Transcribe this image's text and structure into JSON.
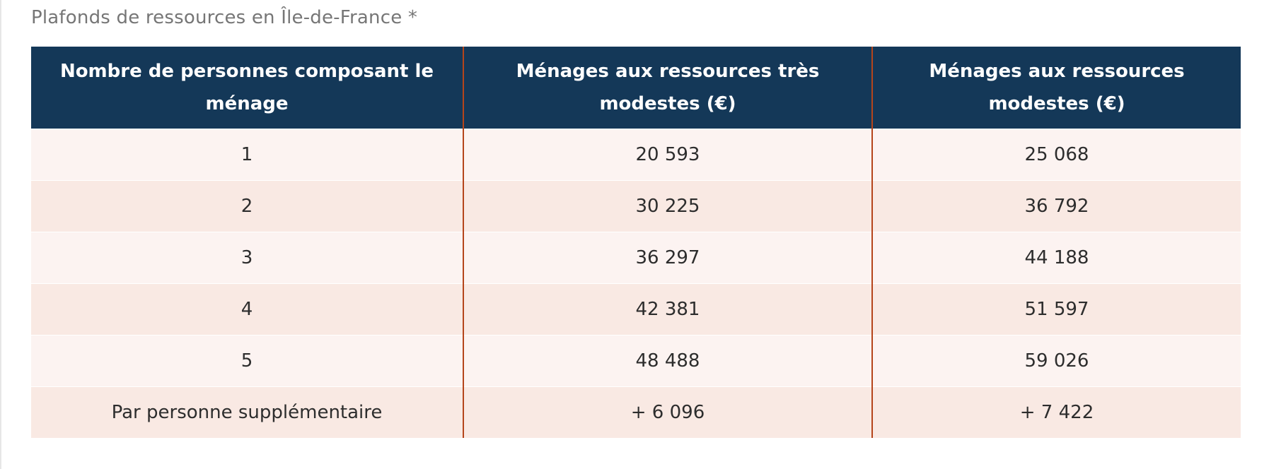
{
  "caption": "Plafonds de ressources en Île-de-France *",
  "table": {
    "headers": [
      "Nombre de personnes composant le ménage",
      "Ménages aux ressources très modestes (€)",
      "Ménages aux ressources modestes (€)"
    ],
    "rows": [
      [
        "1",
        "20 593",
        "25 068"
      ],
      [
        "2",
        "30 225",
        "36 792"
      ],
      [
        "3",
        "36 297",
        "44 188"
      ],
      [
        "4",
        "42 381",
        "51 597"
      ],
      [
        "5",
        "48 488",
        "59 026"
      ],
      [
        "Par personne supplémentaire",
        "+ 6 096",
        "+ 7 422"
      ]
    ]
  },
  "colors": {
    "header_background": "#143858",
    "header_text": "#ffffff",
    "column_divider": "#b5451b",
    "row_light": "#fcf3f1",
    "row_dark": "#f9e9e3",
    "caption_text": "#767676"
  }
}
